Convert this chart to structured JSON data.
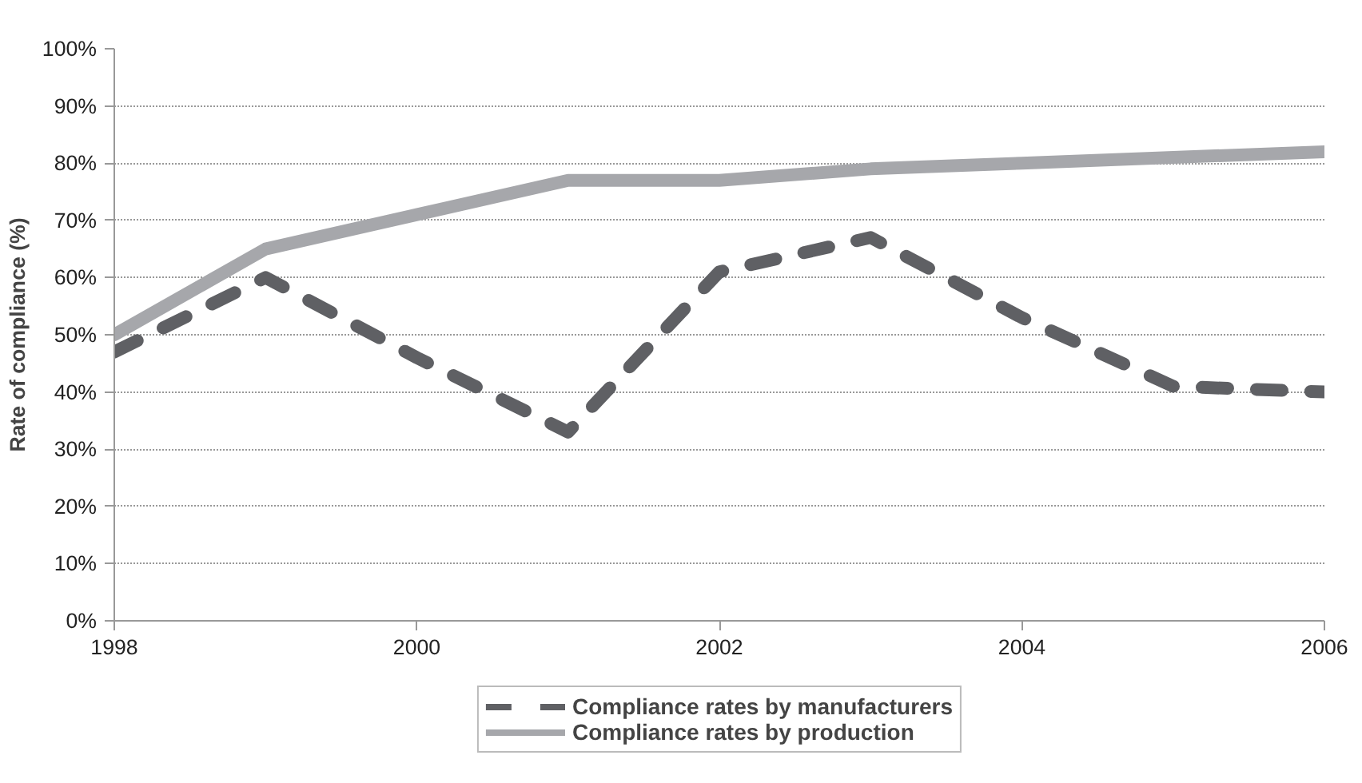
{
  "chart_data": {
    "type": "line",
    "ylabel": "Rate of compliance (%)",
    "x": [
      1998,
      1999,
      2000,
      2001,
      2002,
      2003,
      2004,
      2005,
      2006
    ],
    "xlim": [
      1998,
      2006
    ],
    "xticks": [
      1998,
      2000,
      2002,
      2004,
      2006
    ],
    "ylim": [
      0,
      100
    ],
    "yticks": [
      {
        "value": 0,
        "label": "0%"
      },
      {
        "value": 10,
        "label": "10%"
      },
      {
        "value": 20,
        "label": "20%"
      },
      {
        "value": 30,
        "label": "30%"
      },
      {
        "value": 40,
        "label": "40%"
      },
      {
        "value": 50,
        "label": "50%"
      },
      {
        "value": 60,
        "label": "60%"
      },
      {
        "value": 70,
        "label": "70%"
      },
      {
        "value": 80,
        "label": "80%"
      },
      {
        "value": 90,
        "label": "90%"
      },
      {
        "value": 100,
        "label": "100%"
      }
    ],
    "grid": "y",
    "legend": "bottom",
    "series": [
      {
        "name": "Compliance rates by manufacturers",
        "color": "#5f6064",
        "line_style": "dashed",
        "values": [
          47,
          60,
          46,
          33,
          61,
          67,
          53,
          41,
          40
        ]
      },
      {
        "name": "Compliance rates by production",
        "color": "#a6a7ab",
        "line_style": "solid",
        "values": [
          50,
          65,
          71,
          77,
          77,
          79,
          80,
          81,
          82
        ]
      }
    ]
  }
}
